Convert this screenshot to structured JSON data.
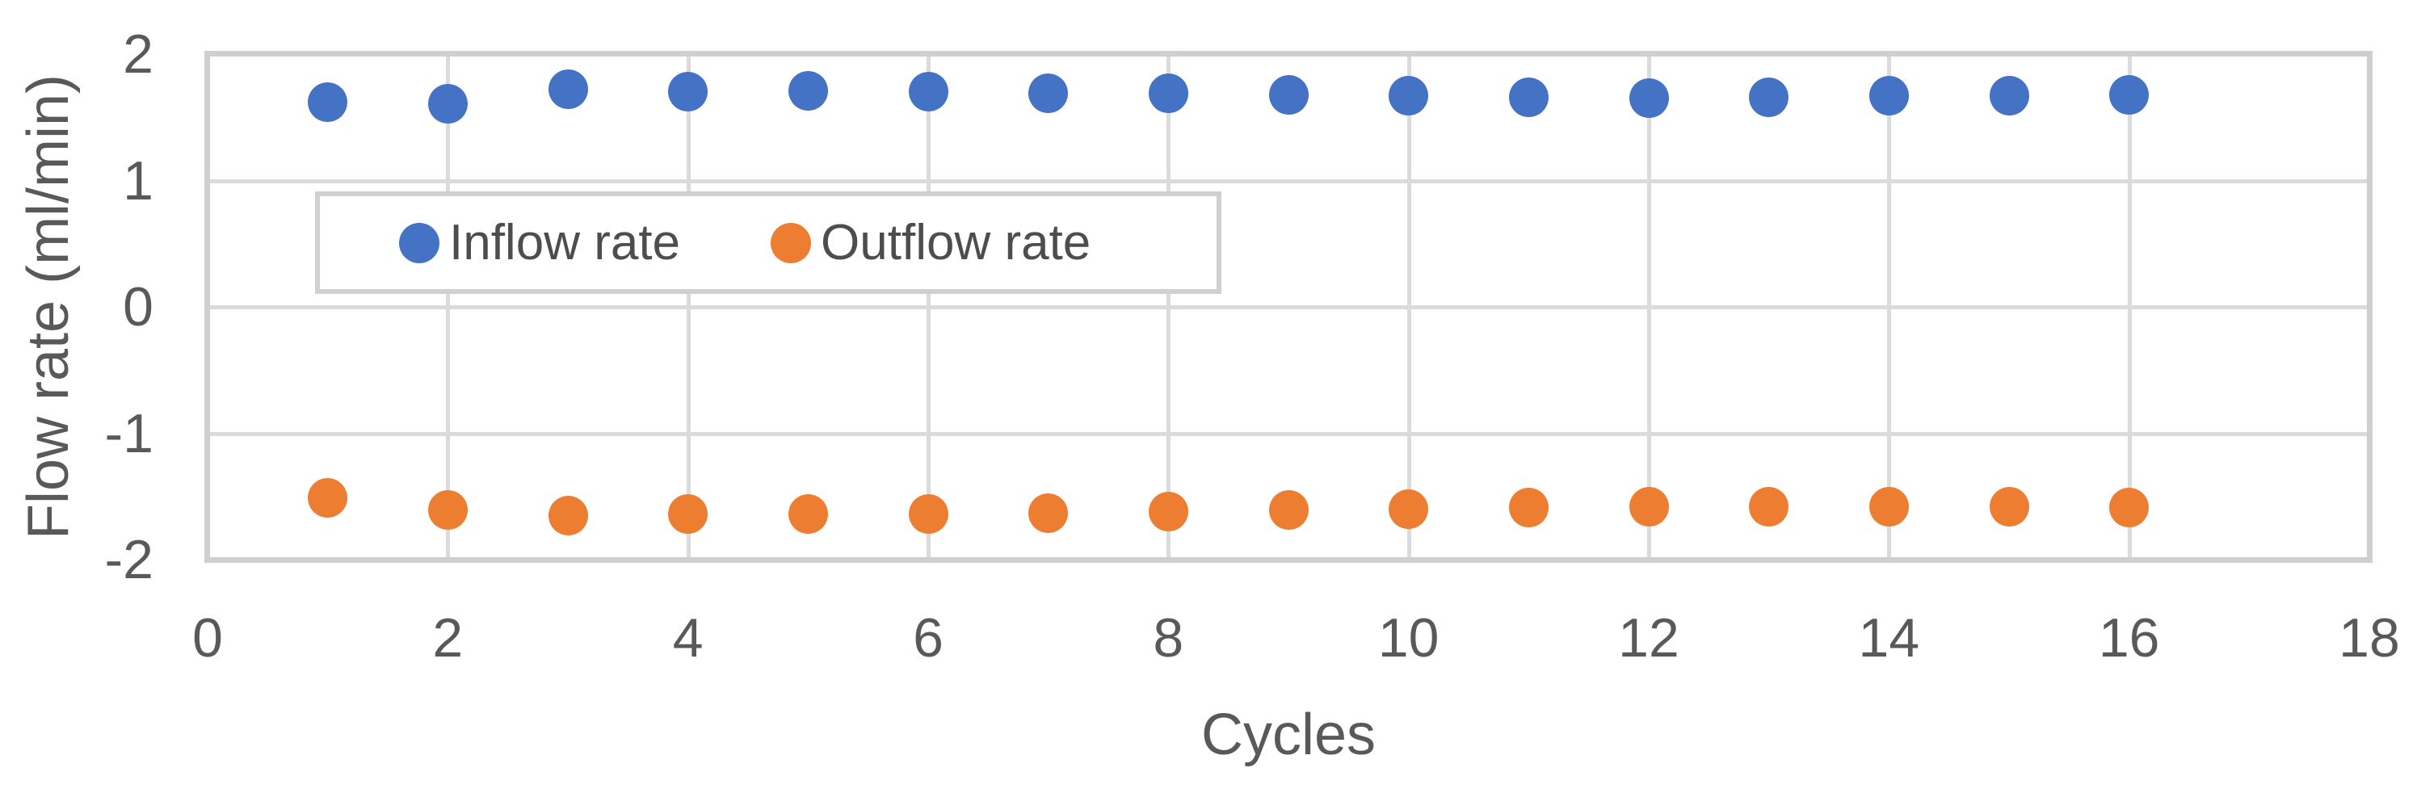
{
  "chart_data": {
    "type": "scatter",
    "x": [
      1,
      2,
      3,
      4,
      5,
      6,
      7,
      8,
      9,
      10,
      11,
      12,
      13,
      14,
      15,
      16
    ],
    "series": [
      {
        "name": "Inflow rate",
        "color": "#4472C4",
        "values": [
          1.62,
          1.61,
          1.72,
          1.7,
          1.71,
          1.7,
          1.69,
          1.69,
          1.68,
          1.67,
          1.66,
          1.65,
          1.66,
          1.67,
          1.67,
          1.68
        ]
      },
      {
        "name": "Outflow rate",
        "color": "#ED7D31",
        "values": [
          -1.51,
          -1.61,
          -1.65,
          -1.64,
          -1.64,
          -1.64,
          -1.63,
          -1.62,
          -1.61,
          -1.6,
          -1.59,
          -1.58,
          -1.58,
          -1.58,
          -1.58,
          -1.59
        ]
      }
    ],
    "title": "",
    "xlabel": "Cycles",
    "ylabel": "Flow rate (ml/min)",
    "xlim": [
      0,
      18
    ],
    "ylim": [
      -2,
      2
    ],
    "x_ticks": [
      0,
      2,
      4,
      6,
      8,
      10,
      12,
      14,
      16,
      18
    ],
    "y_ticks": [
      2,
      1,
      0,
      -1,
      -2
    ],
    "grid": true,
    "legend_position": "inside-top-left"
  },
  "style": {
    "background": "#FFFFFF",
    "text_color": "#595959",
    "gridline_color": "#DBDBDB",
    "axis_line_color": "#CFCFCF",
    "legend_border_color": "#D0D0D0"
  }
}
